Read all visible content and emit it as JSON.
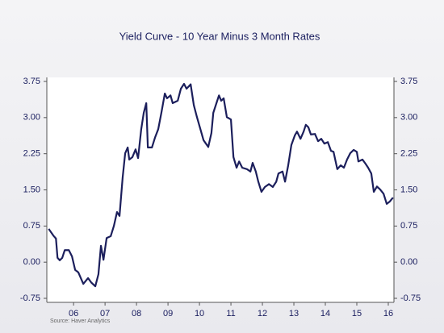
{
  "chart_data": {
    "type": "line",
    "title": "Yield Curve - 10 Year Minus 3 Month Rates",
    "source": "Source:    Haver Analytics",
    "x": [
      2005.71,
      2005.86,
      2005.94,
      2005.99,
      2006.06,
      2006.14,
      2006.22,
      2006.35,
      2006.45,
      2006.55,
      2006.65,
      2006.81,
      2006.96,
      2007.06,
      2007.19,
      2007.29,
      2007.37,
      2007.45,
      2007.55,
      2007.68,
      2007.78,
      2007.88,
      2007.96,
      2008.06,
      2008.14,
      2008.22,
      2008.27,
      2008.37,
      2008.47,
      2008.55,
      2008.65,
      2008.73,
      2008.81,
      2008.86,
      2008.99,
      2009.09,
      2009.19,
      2009.29,
      2009.4,
      2009.47,
      2009.58,
      2009.65,
      2009.81,
      2009.91,
      2010.01,
      2010.09,
      2010.22,
      2010.32,
      2010.42,
      2010.53,
      2010.63,
      2010.78,
      2010.88,
      2010.94,
      2011.04,
      2011.12,
      2011.19,
      2011.27,
      2011.37,
      2011.5,
      2011.58,
      2011.68,
      2011.76,
      2011.86,
      2012.01,
      2012.12,
      2012.19,
      2012.29,
      2012.37,
      2012.47,
      2012.58,
      2012.71,
      2012.83,
      2012.94,
      2013.01,
      2013.14,
      2013.22,
      2013.32,
      2013.42,
      2013.53,
      2013.6,
      2013.71,
      2013.81,
      2013.88,
      2013.96,
      2014.04,
      2014.17,
      2014.27,
      2014.37,
      2014.47,
      2014.58,
      2014.68,
      2014.76,
      2014.88,
      2014.99,
      2015.09,
      2015.19,
      2015.29,
      2015.4,
      2015.5,
      2015.55,
      2015.68,
      2015.78,
      2015.86,
      2015.96,
      2016.04,
      2016.14,
      2016.24,
      2016.35,
      2016.45,
      2016.55,
      2016.65
    ],
    "series": [
      {
        "name": "10 Year Minus 3 Month",
        "color": "#1c1f5c",
        "values": [
          0.69,
          0.55,
          0.49,
          0.09,
          0.04,
          0.09,
          0.25,
          0.25,
          0.12,
          -0.16,
          -0.21,
          -0.45,
          -0.33,
          -0.42,
          -0.5,
          -0.25,
          0.34,
          0.05,
          0.5,
          0.54,
          0.75,
          1.04,
          0.96,
          1.76,
          2.26,
          2.38,
          2.13,
          2.18,
          2.34,
          2.16,
          2.76,
          3.1,
          3.3,
          2.38,
          2.38,
          2.59,
          2.76,
          3.1,
          3.5,
          3.4,
          3.46,
          3.3,
          3.35,
          3.6,
          3.7,
          3.6,
          3.69,
          3.26,
          3.01,
          2.76,
          2.53,
          2.39,
          2.68,
          3.1,
          3.3,
          3.46,
          3.35,
          3.4,
          3.01,
          2.96,
          2.18,
          1.96,
          2.09,
          1.96,
          1.93,
          1.88,
          2.06,
          1.88,
          1.67,
          1.46,
          1.56,
          1.62,
          1.56,
          1.67,
          1.84,
          1.88,
          1.67,
          2.01,
          2.43,
          2.63,
          2.71,
          2.56,
          2.71,
          2.85,
          2.8,
          2.65,
          2.66,
          2.51,
          2.56,
          2.46,
          2.49,
          2.31,
          2.29,
          1.93,
          2.01,
          1.96,
          2.13,
          2.26,
          2.33,
          2.29,
          2.09,
          2.13,
          2.04,
          1.96,
          1.84,
          1.46,
          1.57,
          1.51,
          1.42,
          1.21,
          1.26,
          1.34
        ]
      }
    ],
    "xlim": [
      2005.65,
      2016.68
    ],
    "xticks": [
      {
        "value": 2006.5,
        "label": "06"
      },
      {
        "value": 2007.5,
        "label": "07"
      },
      {
        "value": 2008.5,
        "label": "08"
      },
      {
        "value": 2009.5,
        "label": "09"
      },
      {
        "value": 2010.5,
        "label": "10"
      },
      {
        "value": 2011.5,
        "label": "11"
      },
      {
        "value": 2012.5,
        "label": "12"
      },
      {
        "value": 2013.5,
        "label": "13"
      },
      {
        "value": 2014.5,
        "label": "14"
      },
      {
        "value": 2015.5,
        "label": "15"
      },
      {
        "value": 2016.5,
        "label": "16"
      }
    ],
    "ylim": [
      -0.75,
      3.75
    ],
    "yticks": [
      {
        "value": -0.75,
        "label": "-0.75"
      },
      {
        "value": 0,
        "label": "0.00"
      },
      {
        "value": 0.75,
        "label": "0.75"
      },
      {
        "value": 1.5,
        "label": "1.50"
      },
      {
        "value": 2.25,
        "label": "2.25"
      },
      {
        "value": 3,
        "label": "3.00"
      },
      {
        "value": 3.75,
        "label": "3.75"
      }
    ],
    "y2lim": [
      -0.75,
      3.75
    ],
    "y2ticks": [
      {
        "value": -0.75,
        "label": "-0.75"
      },
      {
        "value": 0,
        "label": "0.00"
      },
      {
        "value": 0.75,
        "label": "0.75"
      },
      {
        "value": 1.5,
        "label": "1.50"
      },
      {
        "value": 2.25,
        "label": "2.25"
      },
      {
        "value": 3,
        "label": "3.00"
      },
      {
        "value": 3.75,
        "label": "3.75"
      }
    ]
  }
}
